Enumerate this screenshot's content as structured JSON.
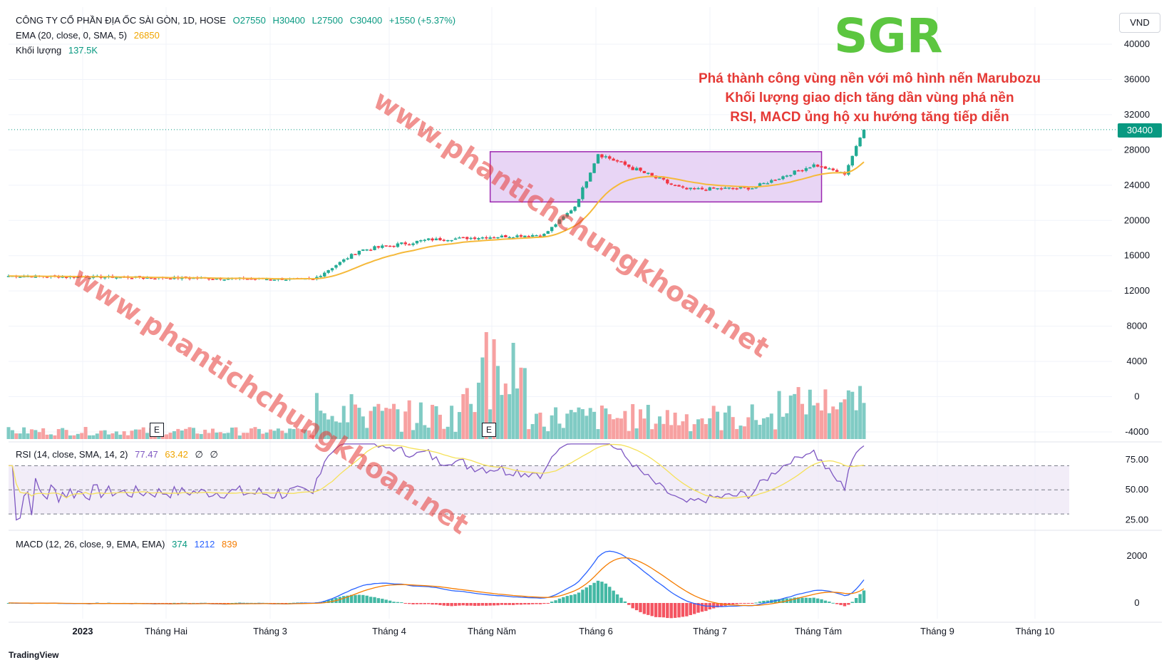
{
  "header": {
    "title": "CÔNG TY CỔ PHẦN ĐỊA ỐC SÀI GÒN, 1D, HOSE",
    "open": "O27550",
    "high": "H30400",
    "low": "L27500",
    "close": "C30400",
    "change": "+1550 (+5.37%)",
    "ema_label": "EMA (20, close, 0, SMA, 5)",
    "ema_value": "26850",
    "vol_label": "Khối lượng",
    "vol_value": "137.5K",
    "rsi_label": "RSI (14, close, SMA, 14, 2)",
    "rsi_value": "77.47",
    "rsi_ma": "63.42",
    "rsi_x1": "∅",
    "rsi_x2": "∅",
    "macd_label": "MACD (12, 26, close, 9, EMA, EMA)",
    "macd_hist": "374",
    "macd_line": "1212",
    "macd_signal": "839"
  },
  "currency": "VND",
  "last_price": "30400",
  "ticker": "SGR",
  "annotations": [
    "Phá thành công vùng nền với mô hình nến Marubozu",
    "Khối lượng giao dịch tăng dần vùng phá nền",
    "RSI, MACD ủng hộ xu hướng tăng tiếp diễn"
  ],
  "watermark": "www.phantichchungkhoan.net",
  "earnings_marker": "E",
  "footer_logo": "TradingView",
  "colors": {
    "up": "#22ab94",
    "down": "#f23645",
    "vol_up": "#80cbc4",
    "vol_down": "#f7a1a1",
    "ema": "#f5b93a",
    "rsi": "#7e57c2",
    "rsi_ma": "#f5e15a",
    "macd": "#2962ff",
    "signal": "#f57c00",
    "box": "#e8d5f5",
    "box_border": "#9c27b0",
    "ticker": "#5cc640",
    "annotation": "#e53935"
  },
  "chart_data": {
    "type": "candlestick",
    "x_labels": [
      "2023",
      "Tháng Hai",
      "Tháng 3",
      "Tháng 4",
      "Tháng Năm",
      "Tháng 6",
      "Tháng 7",
      "Tháng Tám",
      "Tháng 9",
      "Tháng 10"
    ],
    "price_axis": [
      "40000",
      "36000",
      "32000",
      "28000",
      "24000",
      "20000",
      "16000",
      "12000",
      "8000",
      "4000",
      "0",
      "-4000"
    ],
    "price_range": [
      -4000,
      40000
    ],
    "rsi_axis": [
      "75.00",
      "50.00",
      "25.00"
    ],
    "rsi_levels": [
      70,
      50,
      30
    ],
    "macd_axis": [
      "2000",
      "0"
    ],
    "base_zone": {
      "start_index": 125,
      "end_index": 211,
      "low": 22100,
      "high": 27800
    },
    "series": [
      {
        "name": "price",
        "segments": [
          {
            "n": 80,
            "from": 13700,
            "to": 13300,
            "noise": 280
          },
          {
            "n": 12,
            "from": 13300,
            "to": 16600,
            "noise": 320
          },
          {
            "n": 18,
            "from": 16600,
            "to": 17800,
            "noise": 420
          },
          {
            "n": 30,
            "from": 17800,
            "to": 18400,
            "noise": 320
          },
          {
            "n": 8,
            "from": 18400,
            "to": 21600,
            "noise": 260
          },
          {
            "n": 6,
            "from": 21600,
            "to": 27600,
            "noise": 400
          },
          {
            "n": 22,
            "from": 27600,
            "to": 23500,
            "noise": 550
          },
          {
            "n": 18,
            "from": 23500,
            "to": 23700,
            "noise": 380
          },
          {
            "n": 16,
            "from": 23700,
            "to": 26300,
            "noise": 380
          },
          {
            "n": 8,
            "from": 26300,
            "to": 25300,
            "noise": 260
          },
          {
            "n": 5,
            "from": 25300,
            "to": 30400,
            "noise": 220
          }
        ]
      }
    ]
  }
}
